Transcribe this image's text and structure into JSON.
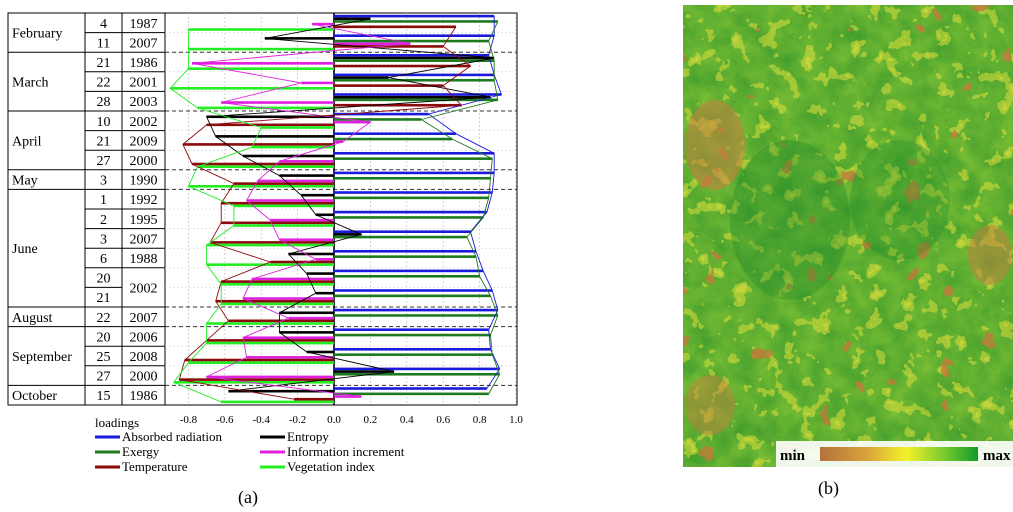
{
  "panel_a": {
    "label": "(a)",
    "axis_label": "loadings",
    "ticks": [
      "-0.8",
      "-0.6",
      "-0.4",
      "-0.2",
      "0.0",
      "0.2",
      "0.4",
      "0.6",
      "0.8",
      "1.0"
    ],
    "rows": [
      {
        "month": "February",
        "day": "4",
        "year": "1987"
      },
      {
        "month": "",
        "day": "11",
        "year": "2007"
      },
      {
        "month": "March",
        "day": "21",
        "year": "1986"
      },
      {
        "month": "",
        "day": "22",
        "year": "2001"
      },
      {
        "month": "",
        "day": "28",
        "year": "2003"
      },
      {
        "month": "April",
        "day": "10",
        "year": "2002"
      },
      {
        "month": "",
        "day": "21",
        "year": "2009"
      },
      {
        "month": "",
        "day": "27",
        "year": "2000"
      },
      {
        "month": "May",
        "day": "3",
        "year": "1990"
      },
      {
        "month": "June",
        "day": "1",
        "year": "1992"
      },
      {
        "month": "",
        "day": "2",
        "year": "1995"
      },
      {
        "month": "",
        "day": "3",
        "year": "2007"
      },
      {
        "month": "",
        "day": "6",
        "year": "1988"
      },
      {
        "month": "",
        "day": "20",
        "year": "2002"
      },
      {
        "month": "",
        "day": "21",
        "year": ""
      },
      {
        "month": "August",
        "day": "22",
        "year": "2007"
      },
      {
        "month": "September",
        "day": "20",
        "year": "2006"
      },
      {
        "month": "",
        "day": "25",
        "year": "2008"
      },
      {
        "month": "",
        "day": "27",
        "year": "2000"
      },
      {
        "month": "October",
        "day": "15",
        "year": "1986"
      }
    ],
    "month_groups": [
      {
        "name": "February",
        "start": 0,
        "end": 1
      },
      {
        "name": "March",
        "start": 2,
        "end": 4
      },
      {
        "name": "April",
        "start": 5,
        "end": 7
      },
      {
        "name": "May",
        "start": 8,
        "end": 8
      },
      {
        "name": "June",
        "start": 9,
        "end": 14
      },
      {
        "name": "August",
        "start": 15,
        "end": 15
      },
      {
        "name": "September",
        "start": 16,
        "end": 18
      },
      {
        "name": "October",
        "start": 19,
        "end": 19
      }
    ],
    "legend": [
      {
        "name": "Absorbed radiation",
        "color": "#1a1adb"
      },
      {
        "name": "Entropy",
        "color": "#000000"
      },
      {
        "name": "Exergy",
        "color": "#1e7a1e"
      },
      {
        "name": "Information increment",
        "color": "#e020e0"
      },
      {
        "name": "Temperature",
        "color": "#8b0a0a"
      },
      {
        "name": "Vegetation index",
        "color": "#22ee22"
      }
    ]
  },
  "panel_b": {
    "label": "(b)",
    "colorbar_min": "min",
    "colorbar_max": "max"
  },
  "chart_data": {
    "type": "bar",
    "orientation": "horizontal",
    "title": "",
    "xlabel": "loadings",
    "xlim": [
      -0.9,
      1.0
    ],
    "grid": true,
    "legend_position": "bottom",
    "categories": [
      "4 Feb 1987",
      "11 Feb 2007",
      "21 Mar 1986",
      "22 Mar 2001",
      "28 Mar 2003",
      "10 Apr 2002",
      "21 Apr 2009",
      "27 Apr 2000",
      "3 May 1990",
      "1 Jun 1992",
      "2 Jun 1995",
      "3 Jun 2007",
      "6 Jun 1988",
      "20 Jun 2002",
      "21 Jun 2002",
      "22 Aug 2007",
      "20 Sep 2006",
      "25 Sep 2008",
      "27 Sep 2000",
      "15 Oct 1986"
    ],
    "series": [
      {
        "name": "Absorbed radiation",
        "color": "#1a1adb",
        "values": [
          0.88,
          0.88,
          0.85,
          0.88,
          0.92,
          0.52,
          0.67,
          0.88,
          0.88,
          0.87,
          0.84,
          0.75,
          0.78,
          0.82,
          0.87,
          0.9,
          0.85,
          0.86,
          0.91,
          0.84
        ]
      },
      {
        "name": "Entropy",
        "color": "#000000",
        "values": [
          0.2,
          -0.38,
          0.88,
          0.3,
          0.86,
          -0.7,
          -0.65,
          -0.5,
          -0.3,
          -0.18,
          -0.1,
          0.15,
          -0.25,
          -0.15,
          -0.1,
          -0.3,
          -0.3,
          -0.15,
          0.33,
          -0.58
        ]
      },
      {
        "name": "Exergy",
        "color": "#1e7a1e",
        "values": [
          0.9,
          0.85,
          0.88,
          0.88,
          0.9,
          0.48,
          0.65,
          0.87,
          0.86,
          0.85,
          0.82,
          0.73,
          0.78,
          0.8,
          0.86,
          0.9,
          0.86,
          0.87,
          0.91,
          0.85
        ]
      },
      {
        "name": "Information increment",
        "color": "#e020e0",
        "values": [
          -0.12,
          0.42,
          -0.78,
          -0.18,
          -0.62,
          0.2,
          0.05,
          -0.3,
          -0.42,
          -0.48,
          -0.35,
          -0.3,
          -0.1,
          -0.45,
          -0.5,
          -0.25,
          -0.5,
          -0.48,
          -0.7,
          0.15
        ]
      },
      {
        "name": "Temperature",
        "color": "#8b0a0a",
        "values": [
          0.67,
          0.6,
          0.75,
          0.6,
          0.7,
          -0.7,
          -0.83,
          -0.78,
          -0.55,
          -0.62,
          -0.62,
          -0.68,
          -0.35,
          -0.62,
          -0.65,
          -0.58,
          -0.7,
          -0.82,
          -0.85,
          -0.22
        ]
      },
      {
        "name": "Vegetation index",
        "color": "#22ee22",
        "values": [
          -0.8,
          -0.8,
          -0.8,
          -0.9,
          -0.75,
          -0.4,
          -0.45,
          -0.75,
          -0.8,
          -0.55,
          -0.55,
          -0.7,
          -0.7,
          -0.62,
          -0.62,
          -0.7,
          -0.7,
          -0.8,
          -0.88,
          -0.62
        ]
      }
    ]
  }
}
